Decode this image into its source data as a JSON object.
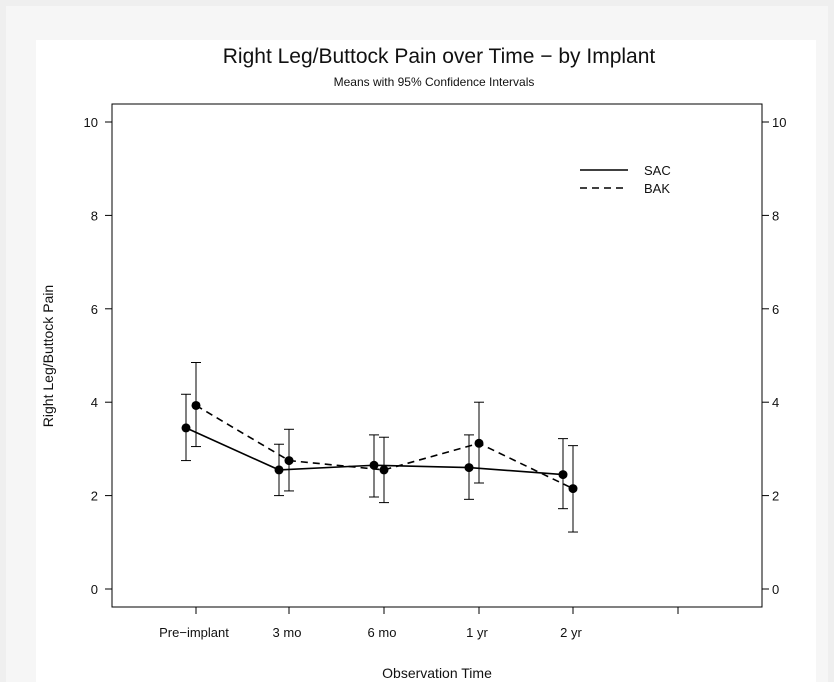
{
  "chart_data": {
    "type": "line",
    "title": "Right Leg/Buttock Pain over Time − by Implant",
    "subtitle": "Means with 95% Confidence Intervals",
    "xlabel": "Observation Time",
    "ylabel": "Right Leg/Buttock Pain",
    "categories": [
      "Pre−implant",
      "3 mo",
      "6 mo",
      "1 yr",
      "2 yr"
    ],
    "ylim": [
      0,
      10
    ],
    "yticks": [
      0,
      2,
      4,
      6,
      8,
      10
    ],
    "yticks_right": [
      "0",
      "2",
      "4",
      "6",
      "8",
      "10"
    ],
    "grid": false,
    "legend": "top-right",
    "series": [
      {
        "name": "SAC",
        "linestyle": "solid",
        "color": "#000000",
        "values": [
          3.45,
          2.55,
          2.65,
          2.6,
          2.45
        ],
        "ci_low": [
          2.75,
          2.0,
          1.97,
          1.92,
          1.72
        ],
        "ci_high": [
          4.17,
          3.1,
          3.3,
          3.3,
          3.22
        ]
      },
      {
        "name": "BAK",
        "linestyle": "dashed",
        "color": "#000000",
        "values": [
          3.93,
          2.75,
          2.55,
          3.12,
          2.15
        ],
        "ci_low": [
          3.05,
          2.1,
          1.85,
          2.27,
          1.22
        ],
        "ci_high": [
          4.85,
          3.42,
          3.25,
          4.0,
          3.07
        ]
      }
    ]
  }
}
